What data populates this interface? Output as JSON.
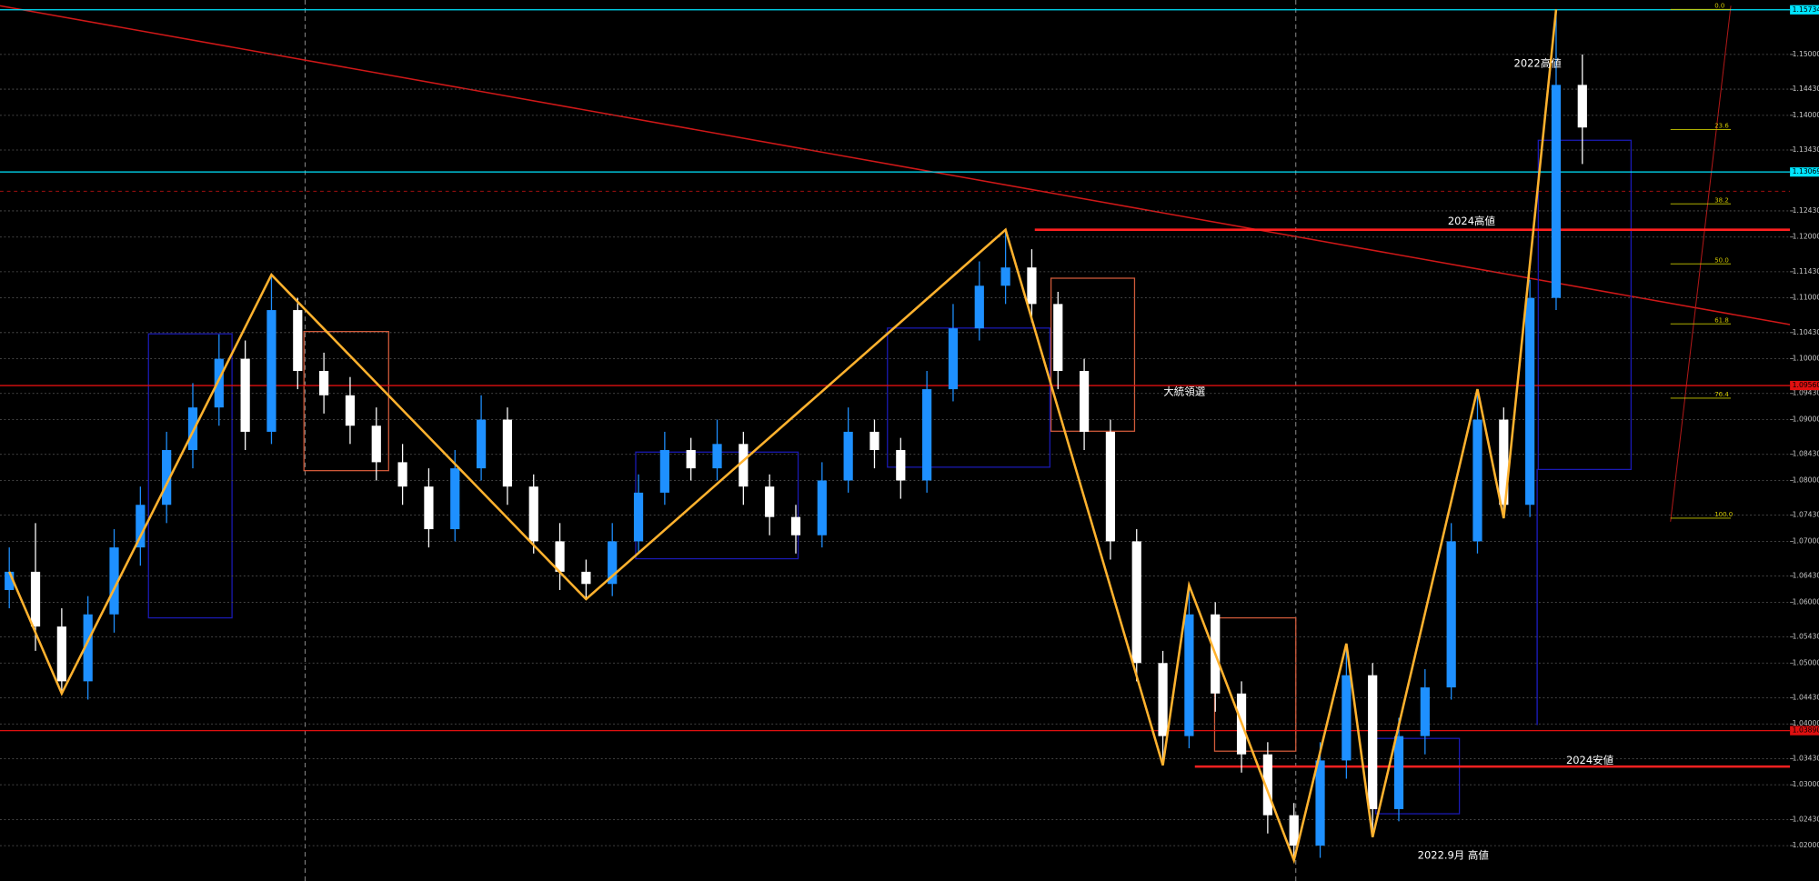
{
  "chart_data": {
    "type": "candlestick",
    "up_color": "#1e90ff",
    "down_color": "#ffffff",
    "grid": true,
    "ylim": [
      1.01419,
      1.15895
    ],
    "yticks": [
      {
        "value": 1.15,
        "label": "1.15000"
      },
      {
        "value": 1.1443,
        "label": "1.14430"
      },
      {
        "value": 1.14,
        "label": "1.14000"
      },
      {
        "value": 1.1343,
        "label": "1.13430"
      },
      {
        "value": 1.1243,
        "label": "1.12430"
      },
      {
        "value": 1.12,
        "label": "1.12000"
      },
      {
        "value": 1.1143,
        "label": "1.11430"
      },
      {
        "value": 1.11,
        "label": "1.11000"
      },
      {
        "value": 1.1043,
        "label": "1.10430"
      },
      {
        "value": 1.1,
        "label": "1.10000"
      },
      {
        "value": 1.0943,
        "label": "1.09430"
      },
      {
        "value": 1.09,
        "label": "1.09000"
      },
      {
        "value": 1.0843,
        "label": "1.08430"
      },
      {
        "value": 1.08,
        "label": "1.08000"
      },
      {
        "value": 1.0743,
        "label": "1.07430"
      },
      {
        "value": 1.07,
        "label": "1.07000"
      },
      {
        "value": 1.0643,
        "label": "1.06430"
      },
      {
        "value": 1.06,
        "label": "1.06000"
      },
      {
        "value": 1.0543,
        "label": "1.05430"
      },
      {
        "value": 1.05,
        "label": "1.05000"
      },
      {
        "value": 1.0443,
        "label": "1.04430"
      },
      {
        "value": 1.04,
        "label": "1.04000"
      },
      {
        "value": 1.0343,
        "label": "1.03430"
      },
      {
        "value": 1.03,
        "label": "1.03000"
      },
      {
        "value": 1.0243,
        "label": "1.02430"
      },
      {
        "value": 1.02,
        "label": "1.02000"
      }
    ],
    "price_labels": [
      {
        "value": 1.15734,
        "label": "1.15734",
        "color": "#00e5ff"
      },
      {
        "value": 1.13069,
        "label": "1.13069",
        "color": "#00e5ff"
      },
      {
        "value": 1.0956,
        "label": "1.09560",
        "color": "#e01010"
      },
      {
        "value": 1.0389,
        "label": "1.03890",
        "color": "#e01010"
      }
    ],
    "key_levels": [
      {
        "value": 1.1212,
        "color": "#ff2020"
      },
      {
        "value": 1.033,
        "color": "#ff2020"
      }
    ],
    "candles": [
      [
        1.062,
        1.069,
        1.059,
        1.065
      ],
      [
        1.065,
        1.073,
        1.052,
        1.056
      ],
      [
        1.056,
        1.059,
        1.045,
        1.047
      ],
      [
        1.047,
        1.061,
        1.044,
        1.058
      ],
      [
        1.058,
        1.072,
        1.055,
        1.069
      ],
      [
        1.069,
        1.079,
        1.066,
        1.076
      ],
      [
        1.076,
        1.088,
        1.073,
        1.085
      ],
      [
        1.085,
        1.096,
        1.082,
        1.092
      ],
      [
        1.092,
        1.104,
        1.089,
        1.1
      ],
      [
        1.1,
        1.103,
        1.085,
        1.088
      ],
      [
        1.088,
        1.1138,
        1.086,
        1.108
      ],
      [
        1.108,
        1.11,
        1.095,
        1.098
      ],
      [
        1.098,
        1.101,
        1.091,
        1.094
      ],
      [
        1.094,
        1.097,
        1.086,
        1.089
      ],
      [
        1.089,
        1.092,
        1.08,
        1.083
      ],
      [
        1.083,
        1.086,
        1.076,
        1.079
      ],
      [
        1.079,
        1.082,
        1.069,
        1.072
      ],
      [
        1.072,
        1.085,
        1.07,
        1.082
      ],
      [
        1.082,
        1.094,
        1.08,
        1.09
      ],
      [
        1.09,
        1.092,
        1.076,
        1.079
      ],
      [
        1.079,
        1.081,
        1.068,
        1.07
      ],
      [
        1.07,
        1.073,
        1.062,
        1.065
      ],
      [
        1.065,
        1.067,
        1.0605,
        1.063
      ],
      [
        1.063,
        1.073,
        1.061,
        1.07
      ],
      [
        1.07,
        1.081,
        1.068,
        1.078
      ],
      [
        1.078,
        1.088,
        1.076,
        1.085
      ],
      [
        1.085,
        1.087,
        1.08,
        1.082
      ],
      [
        1.082,
        1.09,
        1.08,
        1.086
      ],
      [
        1.086,
        1.088,
        1.076,
        1.079
      ],
      [
        1.079,
        1.081,
        1.071,
        1.074
      ],
      [
        1.074,
        1.076,
        1.068,
        1.071
      ],
      [
        1.071,
        1.083,
        1.069,
        1.08
      ],
      [
        1.08,
        1.092,
        1.078,
        1.088
      ],
      [
        1.088,
        1.09,
        1.082,
        1.085
      ],
      [
        1.085,
        1.087,
        1.077,
        1.08
      ],
      [
        1.08,
        1.098,
        1.078,
        1.095
      ],
      [
        1.095,
        1.109,
        1.093,
        1.105
      ],
      [
        1.105,
        1.116,
        1.103,
        1.112
      ],
      [
        1.112,
        1.1212,
        1.109,
        1.115
      ],
      [
        1.115,
        1.118,
        1.106,
        1.109
      ],
      [
        1.109,
        1.111,
        1.095,
        1.098
      ],
      [
        1.098,
        1.1,
        1.085,
        1.088
      ],
      [
        1.088,
        1.09,
        1.067,
        1.07
      ],
      [
        1.07,
        1.072,
        1.047,
        1.05
      ],
      [
        1.05,
        1.052,
        1.0332,
        1.038
      ],
      [
        1.038,
        1.0628,
        1.036,
        1.058
      ],
      [
        1.058,
        1.06,
        1.042,
        1.045
      ],
      [
        1.045,
        1.047,
        1.032,
        1.035
      ],
      [
        1.035,
        1.037,
        1.022,
        1.025
      ],
      [
        1.025,
        1.027,
        1.0176,
        1.02
      ],
      [
        1.02,
        1.037,
        1.018,
        1.034
      ],
      [
        1.034,
        1.0532,
        1.031,
        1.048
      ],
      [
        1.048,
        1.05,
        1.0214,
        1.026
      ],
      [
        1.026,
        1.041,
        1.024,
        1.038
      ],
      [
        1.038,
        1.049,
        1.035,
        1.046
      ],
      [
        1.046,
        1.073,
        1.044,
        1.07
      ],
      [
        1.07,
        1.095,
        1.068,
        1.09
      ],
      [
        1.09,
        1.092,
        1.0738,
        1.076
      ],
      [
        1.076,
        1.113,
        1.074,
        1.11
      ],
      [
        1.11,
        1.1574,
        1.108,
        1.145
      ],
      [
        1.145,
        1.15,
        1.132,
        1.138
      ]
    ],
    "zigzag": {
      "color": "#ffb22e",
      "bars": [
        0,
        2,
        10,
        22,
        38,
        44,
        45,
        49,
        51,
        52,
        56,
        57,
        59
      ],
      "values": [
        1.065,
        1.045,
        1.1138,
        1.0605,
        1.1212,
        1.0332,
        1.0628,
        1.0176,
        1.0532,
        1.0214,
        1.095,
        1.0738,
        1.1574
      ]
    },
    "fib": {
      "color": "#c8c800",
      "range": [
        1.0738,
        1.1574
      ],
      "levels": [
        {
          "value": 0,
          "label": "0.0"
        },
        23.6,
        38.2,
        {
          "value": 50,
          "label": "50.0"
        },
        61.8,
        76.4,
        {
          "value": 100,
          "label": "100.0"
        }
      ]
    },
    "annotations": [
      "2022高値",
      "2024高値",
      "大統領選",
      "2024安値",
      "2022.9月 高値"
    ]
  }
}
